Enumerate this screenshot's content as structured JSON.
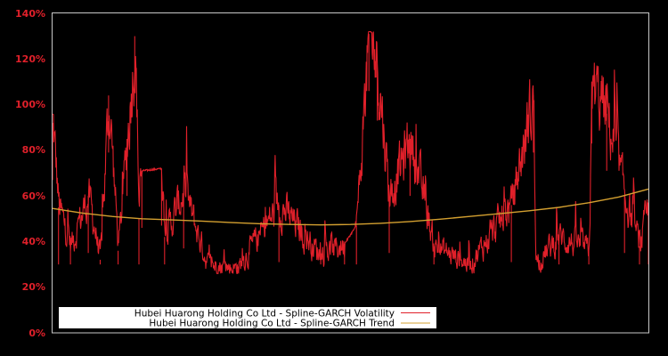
{
  "chart_data": {
    "type": "line",
    "title": "",
    "xlabel": "",
    "ylabel": "",
    "ylim": [
      0,
      140
    ],
    "y_ticks": [
      0,
      20,
      40,
      60,
      80,
      100,
      120,
      140
    ],
    "y_tick_labels": [
      "0%",
      "20%",
      "40%",
      "60%",
      "80%",
      "100%",
      "120%",
      "140%"
    ],
    "x_ticks": [],
    "grid": false,
    "legend_position": "lower-left",
    "x_range": [
      0,
      1
    ],
    "approximation_note": "Axis range, trend curve, and peak positions are read from the screenshot. The dense volatility series between those anchors is a synthesized approximation, not values extracted point-by-point.",
    "series": [
      {
        "name": "Hubei Huarong Holding Co Ltd - Spline-GARCH Volatility",
        "color": "#e0202a",
        "kind": "volatility",
        "anchor_points": [
          {
            "x": 0.0,
            "y": 92
          },
          {
            "x": 0.01,
            "y": 55
          },
          {
            "x": 0.03,
            "y": 38
          },
          {
            "x": 0.06,
            "y": 60
          },
          {
            "x": 0.08,
            "y": 32
          },
          {
            "x": 0.094,
            "y": 104
          },
          {
            "x": 0.11,
            "y": 36
          },
          {
            "x": 0.125,
            "y": 85
          },
          {
            "x": 0.138,
            "y": 130
          },
          {
            "x": 0.145,
            "y": 50
          },
          {
            "x": 0.15,
            "y": 71
          },
          {
            "x": 0.183,
            "y": 72
          },
          {
            "x": 0.188,
            "y": 42
          },
          {
            "x": 0.22,
            "y": 62
          },
          {
            "x": 0.26,
            "y": 30
          },
          {
            "x": 0.31,
            "y": 28
          },
          {
            "x": 0.38,
            "y": 56
          },
          {
            "x": 0.45,
            "y": 34
          },
          {
            "x": 0.49,
            "y": 39
          },
          {
            "x": 0.51,
            "y": 47
          },
          {
            "x": 0.531,
            "y": 131
          },
          {
            "x": 0.545,
            "y": 118
          },
          {
            "x": 0.565,
            "y": 60
          },
          {
            "x": 0.6,
            "y": 85
          },
          {
            "x": 0.64,
            "y": 38
          },
          {
            "x": 0.7,
            "y": 30
          },
          {
            "x": 0.77,
            "y": 56
          },
          {
            "x": 0.81,
            "y": 30
          },
          {
            "x": 0.807,
            "y": 104
          },
          {
            "x": 0.85,
            "y": 42
          },
          {
            "x": 0.9,
            "y": 36
          },
          {
            "x": 0.905,
            "y": 108
          },
          {
            "x": 0.93,
            "y": 96
          },
          {
            "x": 0.96,
            "y": 60
          },
          {
            "x": 0.985,
            "y": 38
          },
          {
            "x": 1.0,
            "y": 55
          }
        ]
      },
      {
        "name": "Hubei Huarong Holding Co Ltd - Spline-GARCH Trend",
        "color": "#d4a030",
        "kind": "trend",
        "points": [
          {
            "x": 0.0,
            "y": 54.5
          },
          {
            "x": 0.05,
            "y": 52.5
          },
          {
            "x": 0.1,
            "y": 51.0
          },
          {
            "x": 0.15,
            "y": 50.0
          },
          {
            "x": 0.2,
            "y": 49.5
          },
          {
            "x": 0.25,
            "y": 49.0
          },
          {
            "x": 0.3,
            "y": 48.3
          },
          {
            "x": 0.35,
            "y": 47.8
          },
          {
            "x": 0.4,
            "y": 47.5
          },
          {
            "x": 0.45,
            "y": 47.3
          },
          {
            "x": 0.5,
            "y": 47.5
          },
          {
            "x": 0.55,
            "y": 48.0
          },
          {
            "x": 0.6,
            "y": 48.8
          },
          {
            "x": 0.65,
            "y": 49.8
          },
          {
            "x": 0.7,
            "y": 51.0
          },
          {
            "x": 0.75,
            "y": 52.2
          },
          {
            "x": 0.8,
            "y": 53.5
          },
          {
            "x": 0.85,
            "y": 55.0
          },
          {
            "x": 0.9,
            "y": 57.0
          },
          {
            "x": 0.95,
            "y": 59.5
          },
          {
            "x": 1.0,
            "y": 63.0
          }
        ]
      }
    ]
  },
  "legend": {
    "items": [
      {
        "label": "Hubei Huarong Holding Co Ltd - Spline-GARCH Volatility",
        "color": "#e0202a"
      },
      {
        "label": "Hubei Huarong Holding Co Ltd - Spline-GARCH Trend",
        "color": "#d4a030"
      }
    ]
  },
  "colors": {
    "background": "#000000",
    "axis_frame": "#c8c8c8",
    "tick_label": "#e0202a",
    "legend_bg": "#ffffff",
    "legend_text": "#000000"
  }
}
